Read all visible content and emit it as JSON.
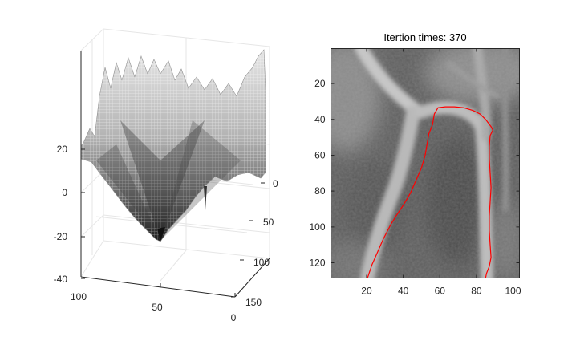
{
  "chart_data": [
    {
      "type": "surface",
      "title": "",
      "colormap": "gray",
      "grid": true,
      "z_ticks": [
        "-40",
        "-20",
        "0",
        "20"
      ],
      "z_range": [
        -40,
        30
      ],
      "x_ticks": [
        "100",
        "50",
        "0"
      ],
      "x_range": [
        0,
        100
      ],
      "y_ticks": [
        "0",
        "50",
        "100",
        "150"
      ],
      "y_range": [
        0,
        150
      ]
    },
    {
      "type": "image",
      "title": "Itertion times: 370",
      "grid": false,
      "x_ticks": [
        "20",
        "40",
        "60",
        "80",
        "100"
      ],
      "x_range": [
        0.5,
        103.5
      ],
      "y_ticks": [
        "20",
        "40",
        "60",
        "80",
        "100",
        "120"
      ],
      "y_range": [
        0.5,
        128.5
      ],
      "y_direction": "reversed",
      "contour_color": "#ff0000",
      "contour": [
        [
          20.5,
          128.5
        ],
        [
          23,
          121
        ],
        [
          26,
          114
        ],
        [
          29,
          107
        ],
        [
          33,
          99
        ],
        [
          36,
          94
        ],
        [
          40,
          88
        ],
        [
          44,
          81
        ],
        [
          47,
          74
        ],
        [
          50,
          67
        ],
        [
          52,
          60
        ],
        [
          53,
          54
        ],
        [
          54,
          48
        ],
        [
          56,
          43
        ],
        [
          57,
          37
        ],
        [
          59,
          33.5
        ],
        [
          63,
          33
        ],
        [
          68,
          33
        ],
        [
          73,
          33.5
        ],
        [
          78,
          35
        ],
        [
          82,
          37
        ],
        [
          85,
          40
        ],
        [
          88,
          44
        ],
        [
          89,
          46
        ],
        [
          87.5,
          49
        ],
        [
          87,
          55
        ],
        [
          87,
          62
        ],
        [
          87.5,
          70
        ],
        [
          88,
          78
        ],
        [
          87.5,
          86
        ],
        [
          87,
          94
        ],
        [
          87,
          102
        ],
        [
          87.5,
          110
        ],
        [
          88,
          117
        ],
        [
          87,
          122
        ],
        [
          85.5,
          126
        ],
        [
          85,
          128.5
        ]
      ]
    }
  ]
}
